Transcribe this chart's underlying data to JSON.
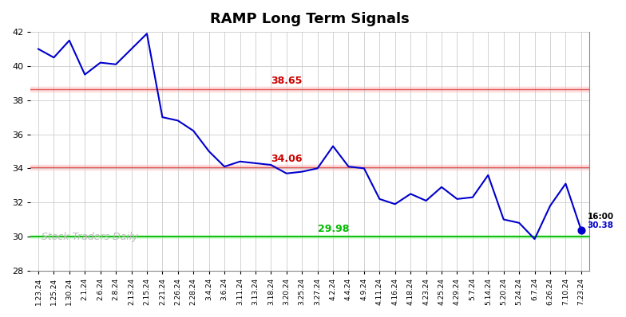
{
  "title": "RAMP Long Term Signals",
  "x_labels": [
    "1.23.24",
    "1.25.24",
    "1.30.24",
    "2.1.24",
    "2.6.24",
    "2.8.24",
    "2.13.24",
    "2.15.24",
    "2.21.24",
    "2.26.24",
    "2.28.24",
    "3.4.24",
    "3.6.24",
    "3.11.24",
    "3.13.24",
    "3.18.24",
    "3.20.24",
    "3.25.24",
    "3.27.24",
    "4.2.24",
    "4.4.24",
    "4.9.24",
    "4.11.24",
    "4.16.24",
    "4.18.24",
    "4.23.24",
    "4.25.24",
    "4.29.24",
    "5.7.24",
    "5.14.24",
    "5.20.24",
    "5.24.24",
    "6.7.24",
    "6.26.24",
    "7.10.24",
    "7.23.24"
  ],
  "y_values": [
    41.0,
    40.5,
    41.5,
    39.5,
    40.2,
    40.1,
    41.0,
    41.9,
    37.0,
    36.8,
    36.2,
    35.0,
    34.1,
    34.4,
    34.3,
    34.2,
    33.7,
    33.8,
    34.0,
    35.3,
    34.1,
    34.0,
    32.2,
    31.9,
    32.5,
    32.1,
    32.9,
    32.2,
    32.3,
    33.6,
    31.0,
    30.8,
    29.85,
    31.8,
    33.1,
    30.38
  ],
  "line_color": "#0000cc",
  "line_width": 1.5,
  "hline_green": 29.98,
  "hline_red1": 38.65,
  "hline_red2": 34.06,
  "hline_green_color": "#00bb00",
  "hline_red_color": "#cc0000",
  "hline_red_bg": "#ffdddd",
  "hline_green_bg": "#ddffdd",
  "annotation_38_65": "38.65",
  "annotation_34_06": "34.06",
  "annotation_29_98": "29.98",
  "last_dot_color": "#0000cc",
  "last_dot_size": 40,
  "ylabel_min": 28,
  "ylabel_max": 42,
  "yticks": [
    28,
    30,
    32,
    34,
    36,
    38,
    40,
    42
  ],
  "watermark": "Stock Traders Daily",
  "bg_color": "#ffffff",
  "grid_color": "#cccccc",
  "annotation_color_last": "#000000",
  "annotation_color_price": "#0000cc"
}
